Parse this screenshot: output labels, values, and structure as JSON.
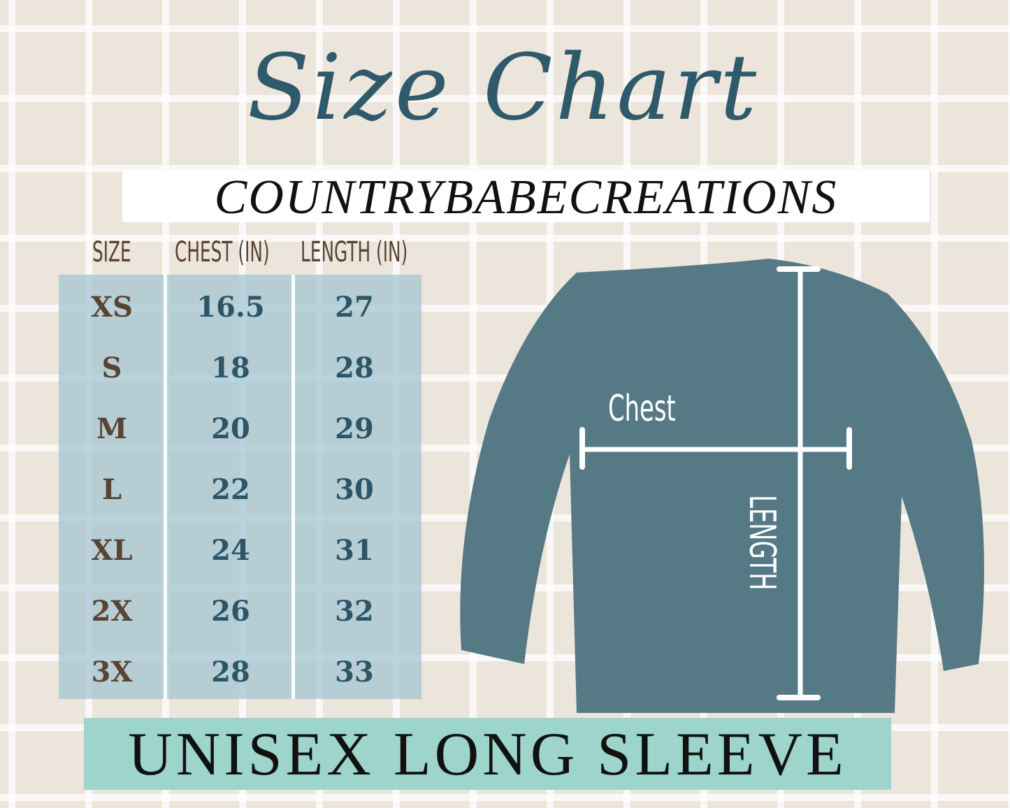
{
  "title": "Size Chart",
  "brand": "COUNTRYBABECREATIONS",
  "table": {
    "headers": [
      "SIZE",
      "CHEST (IN)",
      "LENGTH (IN)"
    ],
    "rows": [
      {
        "size": "XS",
        "chest": "16.5",
        "length": "27"
      },
      {
        "size": "S",
        "chest": "18",
        "length": "28"
      },
      {
        "size": "M",
        "chest": "20",
        "length": "29"
      },
      {
        "size": "L",
        "chest": "22",
        "length": "30"
      },
      {
        "size": "XL",
        "chest": "24",
        "length": "31"
      },
      {
        "size": "2X",
        "chest": "26",
        "length": "32"
      },
      {
        "size": "3X",
        "chest": "28",
        "length": "33"
      }
    ]
  },
  "diagram": {
    "chest_label": "Chest",
    "length_label": "LENGTH",
    "shirt_color": "#557a85"
  },
  "footer": "UNISEX LONG SLEEVE",
  "colors": {
    "title": "#2f5a6b",
    "table_bg": "#a0c3d0",
    "size_text": "#5a4332",
    "number_text": "#2c5568",
    "footer_bg": "#9dd5cc"
  }
}
